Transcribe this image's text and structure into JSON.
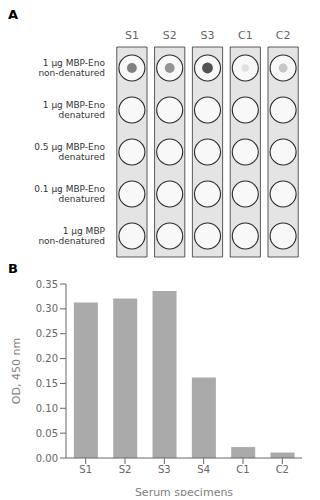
{
  "chart_data": [
    {
      "type": "dot_blot",
      "title": "A",
      "categories": [
        "S1",
        "S2",
        "S3",
        "C1",
        "C2"
      ],
      "row_labels": [
        [
          "1 μg MBP-Eno",
          "non-denatured"
        ],
        [
          "1 μg MBP-Eno",
          "denatured"
        ],
        [
          "0.5 μg MBP-Eno",
          "denatured"
        ],
        [
          "0.1 μg MBP-Eno",
          "denatured"
        ],
        [
          "1 μg MBP",
          "non-denatured"
        ]
      ],
      "intensities": [
        [
          0.5,
          0.42,
          0.68,
          0.12,
          0.22
        ],
        [
          0.0,
          0.0,
          0.0,
          0.0,
          0.0
        ],
        [
          0.0,
          0.0,
          0.0,
          0.0,
          0.0
        ],
        [
          0.0,
          0.0,
          0.0,
          0.0,
          0.0
        ],
        [
          0.0,
          0.0,
          0.0,
          0.0,
          0.0
        ]
      ],
      "dot_size": [
        [
          0.38,
          0.38,
          0.42,
          0.28,
          0.34
        ],
        [
          0.0,
          0.0,
          0.0,
          0.0,
          0.0
        ],
        [
          0.0,
          0.0,
          0.0,
          0.0,
          0.0
        ],
        [
          0.0,
          0.0,
          0.0,
          0.0,
          0.0
        ],
        [
          0.0,
          0.0,
          0.0,
          0.0,
          0.0
        ]
      ]
    },
    {
      "type": "bar",
      "title": "B",
      "categories": [
        "S1",
        "S2",
        "S3",
        "S4",
        "C1",
        "C2"
      ],
      "values": [
        0.313,
        0.321,
        0.336,
        0.162,
        0.022,
        0.011
      ],
      "color": "#aaaaaa",
      "ylim": [
        0,
        0.35
      ],
      "yticks": [
        {
          "value": 0,
          "label": "0.00"
        },
        0.05,
        {
          "value": 0.1,
          "label": "0.10"
        },
        0.15,
        {
          "value": 0.2,
          "label": "0.20"
        },
        0.25,
        {
          "value": 0.3,
          "label": "0.30"
        },
        0.35
      ],
      "xlabel": "Serum specimens",
      "ylabel": "OD, 450 nm",
      "grid": false
    }
  ]
}
